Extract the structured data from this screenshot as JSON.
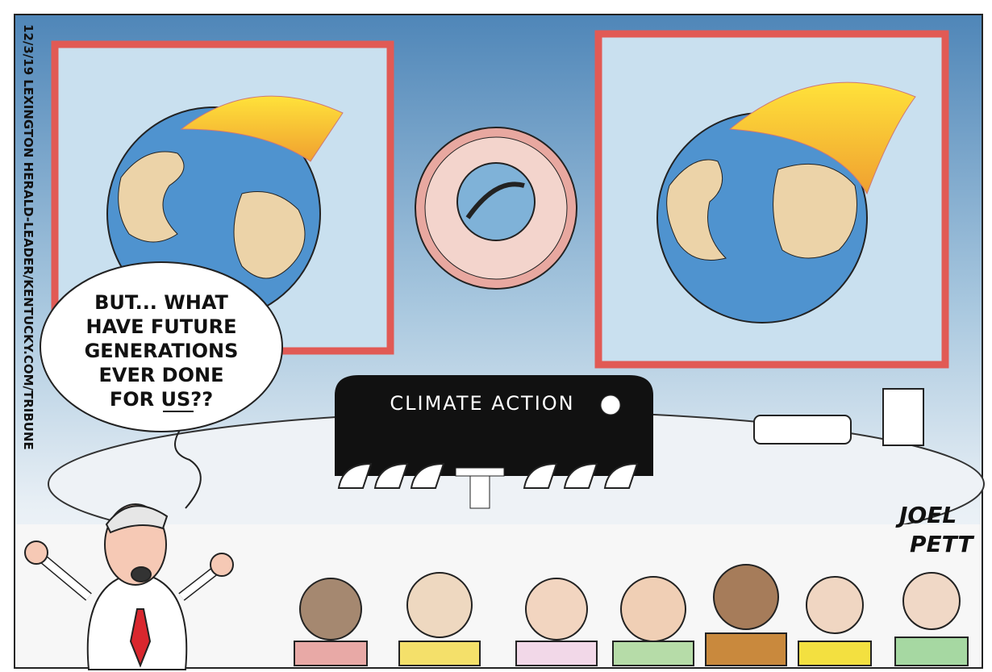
{
  "speech_bubble": {
    "lines": [
      "BUT... WHAT",
      "HAVE FUTURE",
      "GENERATIONS",
      "EVER DONE",
      "FOR US??"
    ]
  },
  "podium_sign": "CLIMATE ACTION",
  "credit": "12/3/19 LEXINGTON HERALD-LEADER/KENTUCKY.COM/TRIBUNE",
  "signature": [
    "JOEL",
    "PETT"
  ]
}
